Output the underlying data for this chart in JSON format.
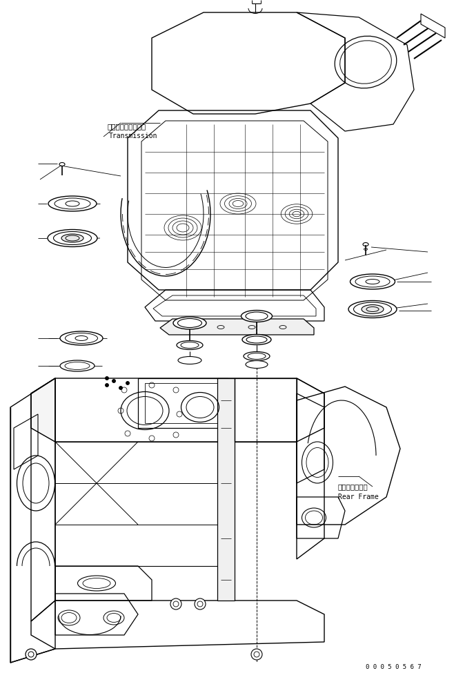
{
  "background_color": "#ffffff",
  "line_color": "#000000",
  "text_transmission_jp": "トランスミッション",
  "text_transmission_en": "Transmission",
  "text_rear_frame_jp": "リヤーフレーム",
  "text_rear_frame_en": "Rear Frame",
  "text_serial": "0 0 0 5 0 5 6 7",
  "fig_width": 6.87,
  "fig_height": 9.75,
  "dpi": 100
}
